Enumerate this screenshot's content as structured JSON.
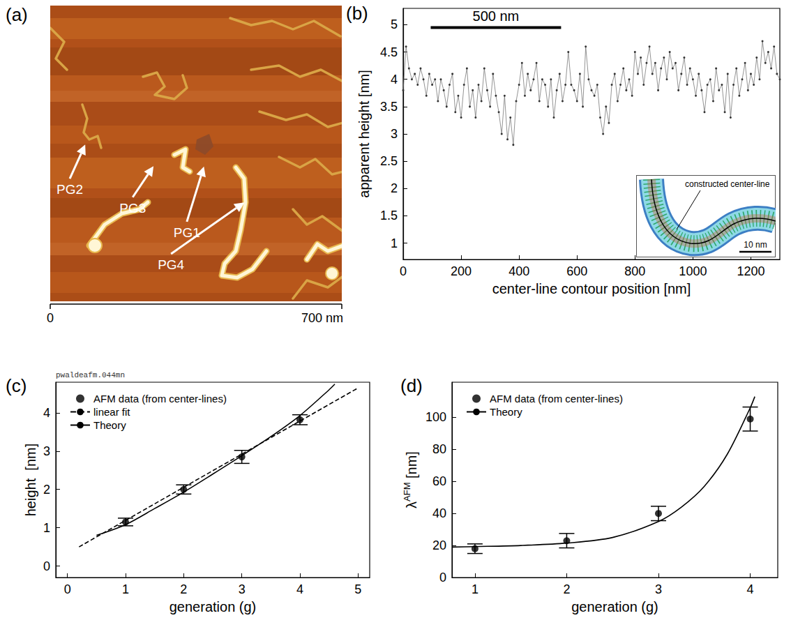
{
  "chart_data": [
    {
      "panel": "(a)",
      "type": "image",
      "xlim": [
        0,
        700
      ],
      "ylim": [
        0,
        700
      ],
      "xticks": [
        0,
        {
          "value": 700,
          "label": "700 nm"
        }
      ],
      "annotations": [
        {
          "text": "PG2",
          "x": 47,
          "y": 264,
          "arrow_x": 84,
          "arrow_y": 371
        },
        {
          "text": "PG3",
          "x": 198,
          "y": 220,
          "arrow_x": 248,
          "arrow_y": 320
        },
        {
          "text": "PG1",
          "x": 328,
          "y": 162,
          "arrow_x": 369,
          "arrow_y": 319
        },
        {
          "text": "PG4",
          "x": 290,
          "y": 86,
          "arrow_x": 466,
          "arrow_y": 234
        }
      ]
    },
    {
      "panel": "(b)",
      "type": "line",
      "xlabel": "center-line contour position [nm]",
      "ylabel": "apparent height [nm]",
      "xlim": [
        0,
        1300
      ],
      "ylim": [
        0.7,
        5.3
      ],
      "xticks": [
        0,
        200,
        400,
        600,
        800,
        1000,
        1200
      ],
      "yticks": [
        1,
        1.5,
        2,
        2.5,
        3,
        3.5,
        4,
        4.5,
        5
      ],
      "grid": false,
      "color": "#333333",
      "marker": "circle",
      "x": [
        0,
        10,
        20,
        30,
        40,
        50,
        60,
        70,
        80,
        90,
        100,
        110,
        120,
        130,
        140,
        150,
        160,
        170,
        180,
        190,
        200,
        210,
        220,
        230,
        240,
        250,
        260,
        270,
        280,
        290,
        300,
        310,
        320,
        330,
        340,
        350,
        360,
        370,
        380,
        390,
        400,
        410,
        420,
        430,
        440,
        450,
        460,
        470,
        480,
        490,
        500,
        510,
        520,
        530,
        540,
        550,
        560,
        570,
        580,
        590,
        600,
        610,
        620,
        630,
        640,
        650,
        660,
        670,
        680,
        690,
        700,
        710,
        720,
        730,
        740,
        750,
        760,
        770,
        780,
        790,
        800,
        810,
        820,
        830,
        840,
        850,
        860,
        870,
        880,
        890,
        900,
        910,
        920,
        930,
        940,
        950,
        960,
        970,
        980,
        990,
        1000,
        1010,
        1020,
        1030,
        1040,
        1050,
        1060,
        1070,
        1080,
        1090,
        1100,
        1110,
        1120,
        1130,
        1140,
        1150,
        1160,
        1170,
        1180,
        1190,
        1200,
        1210,
        1220,
        1230,
        1240,
        1250,
        1260,
        1270,
        1280,
        1290,
        1300
      ],
      "values": [
        3.8,
        4.6,
        4.2,
        4.0,
        4.1,
        3.9,
        4.2,
        4.0,
        3.7,
        4.1,
        3.9,
        4.0,
        3.6,
        4.0,
        3.8,
        3.5,
        3.9,
        4.1,
        3.4,
        3.7,
        3.3,
        3.9,
        4.2,
        3.5,
        3.8,
        3.3,
        3.9,
        3.6,
        4.2,
        3.8,
        3.5,
        4.1,
        3.7,
        3.4,
        3.0,
        3.7,
        2.9,
        3.3,
        2.8,
        3.6,
        3.9,
        4.3,
        3.7,
        4.1,
        3.8,
        4.0,
        4.3,
        3.6,
        4.0,
        3.9,
        3.5,
        4.0,
        3.3,
        3.8,
        4.1,
        3.6,
        3.9,
        4.5,
        3.9,
        3.8,
        3.6,
        4.1,
        3.5,
        4.6,
        4.0,
        3.8,
        3.7,
        3.9,
        3.3,
        3.0,
        3.5,
        3.2,
        3.9,
        4.1,
        3.6,
        3.9,
        4.2,
        3.8,
        4.0,
        3.7,
        4.5,
        4.1,
        4.4,
        3.9,
        4.3,
        4.6,
        4.1,
        4.3,
        3.8,
        4.2,
        4.4,
        4.0,
        4.5,
        4.2,
        4.3,
        3.8,
        4.1,
        4.4,
        3.9,
        4.2,
        4.0,
        3.7,
        4.1,
        3.8,
        3.4,
        3.9,
        4.0,
        3.6,
        4.2,
        3.8,
        3.9,
        3.4,
        4.1,
        3.3,
        3.9,
        4.2,
        3.7,
        4.0,
        4.3,
        3.8,
        4.1,
        3.9,
        4.4,
        4.0,
        4.7,
        4.3,
        4.5,
        4.2,
        4.6,
        4.1,
        4.0
      ],
      "scale_bar": {
        "label": "500 nm",
        "x0": 95,
        "x1": 545,
        "y": 4.95
      },
      "inset": {
        "label": "constructed center-line",
        "scale_bar": "10 nm"
      }
    },
    {
      "panel": "(c)",
      "type": "scatter",
      "xlabel": "generation (g)",
      "ylabel": "height  [nm]",
      "xlim": [
        -0.2,
        5.2
      ],
      "ylim": [
        -0.3,
        4.8
      ],
      "xticks": [
        0,
        1,
        2,
        3,
        4,
        5
      ],
      "yticks": [
        0,
        1,
        2,
        3,
        4
      ],
      "grid": false,
      "legend": "upper left",
      "annotations": [
        {
          "text": "pwaldeafm.044mn"
        }
      ],
      "series": [
        {
          "name": "AFM data (from center-lines)",
          "type": "scatter",
          "color": "#000000",
          "marker": "circle",
          "x": [
            1,
            2,
            3,
            4
          ],
          "values": [
            1.15,
            2.0,
            2.85,
            3.82
          ],
          "errors": [
            0.1,
            0.12,
            0.17,
            0.13
          ]
        },
        {
          "name": "linear fit",
          "type": "line",
          "line_style": "dashed",
          "color": "#000000",
          "x": [
            0.2,
            5
          ],
          "values": [
            0.5,
            4.65
          ]
        },
        {
          "name": "Theory",
          "type": "line",
          "line_style": "solid",
          "color": "#000000",
          "x": [
            0.5,
            1,
            1.5,
            2,
            2.5,
            3,
            3.5,
            4,
            4.5,
            4.6
          ],
          "values": [
            0.8,
            1.08,
            1.5,
            1.93,
            2.4,
            2.88,
            3.38,
            3.93,
            4.6,
            4.75
          ]
        }
      ]
    },
    {
      "panel": "(d)",
      "type": "scatter",
      "xlabel": "generation (g)",
      "ylabel": {
        "text": "λ",
        "superscript": "AFM",
        "unit": "[nm]"
      },
      "xlim": [
        0.75,
        4.3
      ],
      "ylim": [
        0,
        122
      ],
      "xticks": [
        1,
        2,
        3,
        4
      ],
      "yticks": [
        0,
        20,
        40,
        60,
        80,
        100
      ],
      "grid": false,
      "legend": "upper left",
      "series": [
        {
          "name": "AFM data (from center-lines)",
          "type": "scatter",
          "color": "#000000",
          "marker": "circle",
          "x": [
            1,
            2,
            3,
            4
          ],
          "values": [
            18,
            23,
            40,
            99
          ],
          "errors": [
            3,
            4.5,
            4.5,
            7.5
          ]
        },
        {
          "name": "Theory",
          "type": "line",
          "line_style": "solid",
          "color": "#000000",
          "x": [
            0.75,
            1,
            1.5,
            2,
            2.5,
            3,
            3.25,
            3.5,
            3.75,
            4,
            4.05
          ],
          "values": [
            19,
            19.3,
            20,
            21.5,
            25,
            35,
            44,
            57,
            77,
            106,
            113
          ]
        }
      ]
    }
  ]
}
